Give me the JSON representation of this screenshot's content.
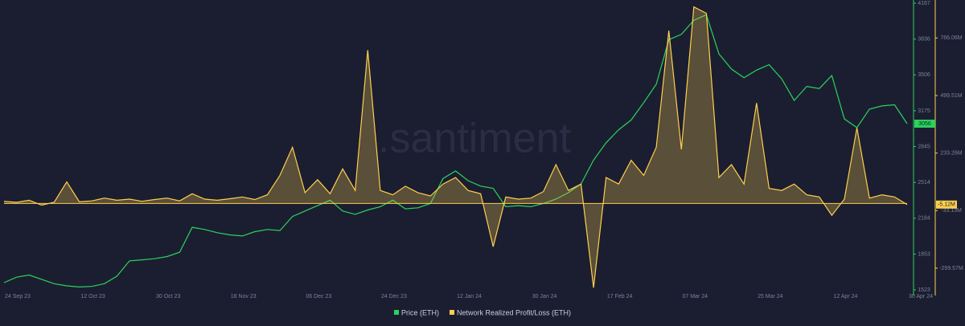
{
  "chart_data": {
    "type": "line",
    "watermark": ".santiment",
    "categories": [
      "24 Sep 23",
      null,
      null,
      null,
      null,
      null,
      "12 Oct 23",
      null,
      null,
      null,
      null,
      null,
      "30 Oct 23",
      null,
      null,
      null,
      null,
      null,
      "18 Nov 23",
      null,
      null,
      null,
      null,
      null,
      "06 Dec 23",
      null,
      null,
      null,
      null,
      null,
      "24 Dec 23",
      null,
      null,
      null,
      null,
      null,
      "12 Jan 24",
      null,
      null,
      null,
      null,
      null,
      "30 Jan 24",
      null,
      null,
      null,
      null,
      null,
      "17 Feb 24",
      null,
      null,
      null,
      null,
      null,
      "07 Mar 24",
      null,
      null,
      null,
      null,
      null,
      "25 Mar 24",
      null,
      null,
      null,
      null,
      null,
      "12 Apr 24",
      null,
      null,
      null,
      null,
      null,
      "30 Apr 24"
    ],
    "series": [
      {
        "name": "Price (ETH)",
        "color": "#2bd35c",
        "current_label": "3056",
        "values": [
          1590,
          1640,
          1660,
          1620,
          1580,
          1560,
          1550,
          1555,
          1580,
          1650,
          1790,
          1800,
          1810,
          1830,
          1870,
          2100,
          2080,
          2050,
          2030,
          2020,
          2060,
          2080,
          2070,
          2200,
          2250,
          2300,
          2350,
          2250,
          2220,
          2260,
          2290,
          2350,
          2270,
          2280,
          2320,
          2550,
          2620,
          2530,
          2480,
          2460,
          2290,
          2300,
          2290,
          2320,
          2360,
          2420,
          2500,
          2720,
          2880,
          3000,
          3090,
          3250,
          3420,
          3830,
          3880,
          4010,
          4060,
          3700,
          3560,
          3480,
          3550,
          3600,
          3470,
          3270,
          3400,
          3380,
          3500,
          3100,
          3020,
          3190,
          3220,
          3230,
          3056
        ]
      },
      {
        "name": "Network Realized Profit/Loss (ETH)",
        "color": "#ffcf4d",
        "axis": "y2",
        "current_label": "-5.12M",
        "values": [
          10,
          5,
          15,
          -8,
          6,
          100,
          8,
          12,
          25,
          15,
          20,
          10,
          18,
          25,
          12,
          45,
          20,
          15,
          22,
          30,
          18,
          40,
          130,
          260,
          50,
          110,
          45,
          160,
          60,
          710,
          60,
          40,
          80,
          50,
          35,
          90,
          120,
          60,
          45,
          -200,
          30,
          20,
          25,
          55,
          180,
          60,
          90,
          -390,
          120,
          90,
          200,
          130,
          260,
          800,
          250,
          910,
          880,
          120,
          180,
          90,
          465,
          70,
          60,
          90,
          40,
          30,
          -55,
          20,
          350,
          25,
          40,
          30,
          -5.12
        ]
      }
    ],
    "ylim": [
      1523,
      4167
    ],
    "yticks": [
      1523,
      1853,
      2184,
      2514,
      2845,
      3175,
      3506,
      3836,
      4167
    ],
    "y2lim": [
      -400,
      927
    ],
    "y2ticks": [
      {
        "value": 766.06,
        "label": "766.06M"
      },
      {
        "value": 499.51,
        "label": "499.51M"
      },
      {
        "value": 233.26,
        "label": "233.26M"
      },
      {
        "value": -33.13,
        "label": "-33.13M"
      },
      {
        "value": -299.57,
        "label": "-299.57M"
      }
    ]
  }
}
